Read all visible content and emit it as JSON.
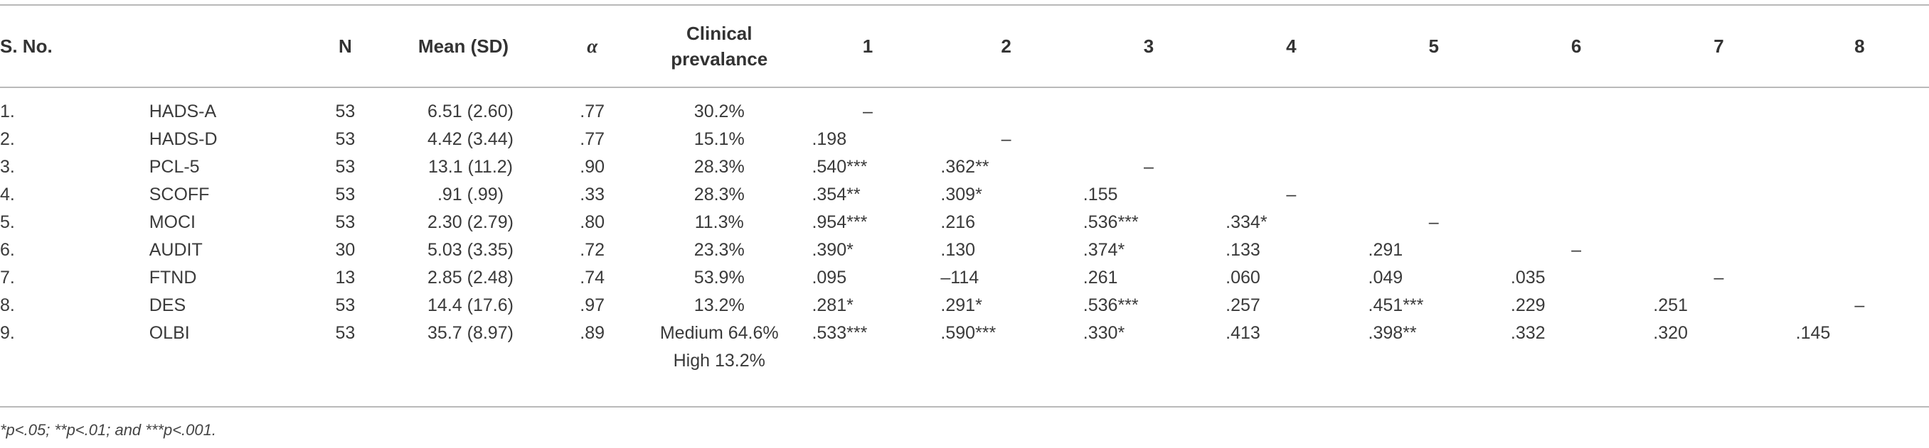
{
  "header": {
    "sno": "S. No.",
    "n": "N",
    "mean": "Mean (SD)",
    "alpha": "α",
    "clinical_line1": "Clinical",
    "clinical_line2": "prevalance",
    "cols": [
      "1",
      "2",
      "3",
      "4",
      "5",
      "6",
      "7",
      "8"
    ]
  },
  "rows": [
    {
      "sno": "1.",
      "label": "HADS-A",
      "n": "53",
      "mean": "6.51 (2.60)",
      "alpha": ".77",
      "prev": "30.2%",
      "c": [
        "–",
        "",
        "",
        "",
        "",
        "",
        "",
        ""
      ]
    },
    {
      "sno": "2.",
      "label": "HADS-D",
      "n": "53",
      "mean": "4.42 (3.44)",
      "alpha": ".77",
      "prev": "15.1%",
      "c": [
        ".198",
        "–",
        "",
        "",
        "",
        "",
        "",
        ""
      ]
    },
    {
      "sno": "3.",
      "label": "PCL-5",
      "n": "53",
      "mean": "13.1 (11.2)",
      "alpha": ".90",
      "prev": "28.3%",
      "c": [
        ".540***",
        ".362**",
        "–",
        "",
        "",
        "",
        "",
        ""
      ]
    },
    {
      "sno": "4.",
      "label": "SCOFF",
      "n": "53",
      "mean": ".91 (.99)",
      "alpha": ".33",
      "prev": "28.3%",
      "c": [
        ".354**",
        ".309*",
        ".155",
        "–",
        "",
        "",
        "",
        ""
      ]
    },
    {
      "sno": "5.",
      "label": "MOCI",
      "n": "53",
      "mean": "2.30 (2.79)",
      "alpha": ".80",
      "prev": "11.3%",
      "c": [
        ".954***",
        ".216",
        ".536***",
        ".334*",
        "–",
        "",
        "",
        ""
      ]
    },
    {
      "sno": "6.",
      "label": "AUDIT",
      "n": "30",
      "mean": "5.03 (3.35)",
      "alpha": ".72",
      "prev": "23.3%",
      "c": [
        ".390*",
        ".130",
        ".374*",
        ".133",
        ".291",
        "–",
        "",
        ""
      ]
    },
    {
      "sno": "7.",
      "label": "FTND",
      "n": "13",
      "mean": "2.85 (2.48)",
      "alpha": ".74",
      "prev": "53.9%",
      "c": [
        ".095",
        "–114",
        ".261",
        ".060",
        ".049",
        ".035",
        "–",
        ""
      ]
    },
    {
      "sno": "8.",
      "label": "DES",
      "n": "53",
      "mean": "14.4 (17.6)",
      "alpha": ".97",
      "prev": "13.2%",
      "c": [
        ".281*",
        ".291*",
        ".536***",
        ".257",
        ".451***",
        ".229",
        ".251",
        "–"
      ]
    },
    {
      "sno": "9.",
      "label": "OLBI",
      "n": "53",
      "mean": "35.7 (8.97)",
      "alpha": ".89",
      "prev": "Medium 64.6%",
      "c": [
        ".533***",
        ".590***",
        ".330*",
        ".413",
        ".398**",
        ".332",
        ".320",
        ".145"
      ]
    },
    {
      "sno": "",
      "label": "",
      "n": "",
      "mean": "",
      "alpha": "",
      "prev": "High 13.2%",
      "c": [
        "",
        "",
        "",
        "",
        "",
        "",
        "",
        ""
      ]
    }
  ],
  "footnote": "*p<.05; **p<.01; and ***p<.001."
}
